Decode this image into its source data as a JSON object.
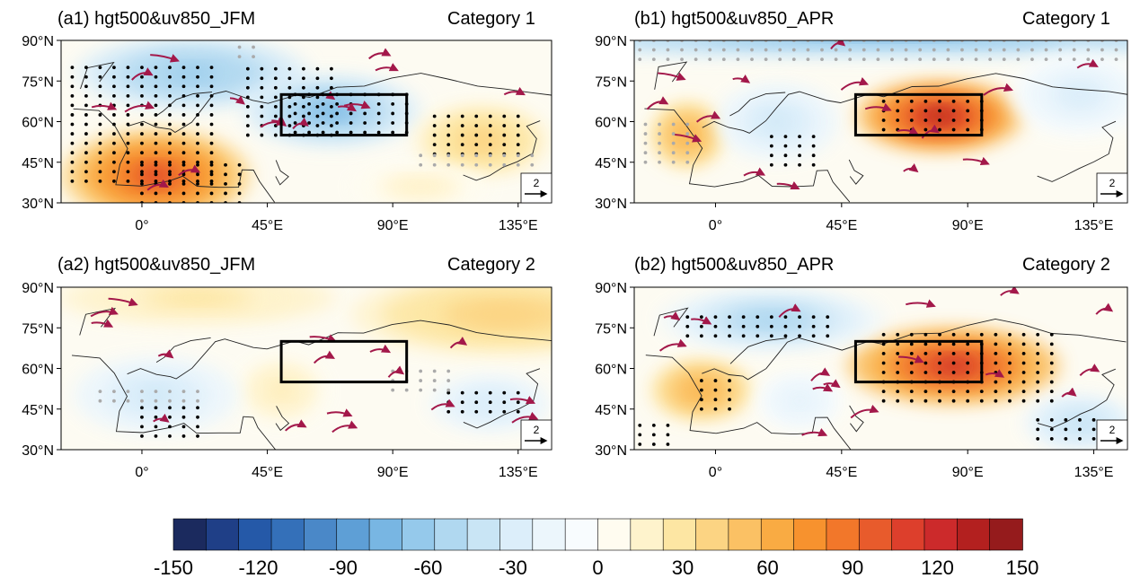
{
  "panels": [
    {
      "id": "a1",
      "title": "(a1) hgt500&uv850_JFM",
      "category": "Category 1",
      "ref_vector": "2",
      "fields": [
        {
          "lon": 5,
          "lat": 40,
          "rx": 34,
          "ry": 17,
          "v": 110
        },
        {
          "lon": 18,
          "lat": 78,
          "rx": 42,
          "ry": 13,
          "v": -70
        },
        {
          "lon": 68,
          "lat": 64,
          "rx": 32,
          "ry": 13,
          "v": -80
        },
        {
          "lon": 122,
          "lat": 53,
          "rx": 24,
          "ry": 13,
          "v": 45
        },
        {
          "lon": 100,
          "lat": 36,
          "rx": 25,
          "ry": 7,
          "v": 18
        }
      ],
      "stipple": [
        [
          -25,
          28,
          38,
          83,
          "black"
        ],
        [
          38,
          72,
          55,
          80,
          "black"
        ],
        [
          55,
          95,
          56,
          70,
          "black"
        ],
        [
          105,
          135,
          48,
          62,
          "black"
        ],
        [
          0,
          35,
          30,
          47,
          "black"
        ],
        [
          35,
          40,
          84,
          88,
          "grey"
        ],
        [
          100,
          140,
          44,
          48,
          "grey"
        ]
      ],
      "box": {
        "lon1": 50,
        "lon2": 95,
        "lat1": 55,
        "lat2": 70
      }
    },
    {
      "id": "b1",
      "title": "(b1) hgt500&uv850_APR",
      "category": "Category 1",
      "ref_vector": "2",
      "fields": [
        {
          "lon": -10,
          "lat": 55,
          "rx": 13,
          "ry": 12,
          "v": 70
        },
        {
          "lon": 80,
          "lat": 62,
          "rx": 30,
          "ry": 13,
          "v": 135
        },
        {
          "lon": 22,
          "lat": 60,
          "rx": 22,
          "ry": 14,
          "v": -40
        },
        {
          "lon": 60,
          "lat": 92,
          "rx": 160,
          "ry": 8,
          "v": -80
        },
        {
          "lon": 130,
          "lat": 70,
          "rx": 25,
          "ry": 15,
          "v": -30
        }
      ],
      "stipple": [
        [
          -27,
          147,
          83,
          90,
          "grey"
        ],
        [
          60,
          97,
          57,
          68,
          "black"
        ],
        [
          -25,
          -10,
          45,
          62,
          "grey"
        ],
        [
          20,
          35,
          44,
          55,
          "black"
        ]
      ],
      "box": {
        "lon1": 50,
        "lon2": 95,
        "lat1": 55,
        "lat2": 70
      }
    },
    {
      "id": "a2",
      "title": "(a2) hgt500&uv850_JFM",
      "category": "Category 2",
      "ref_vector": "2",
      "fields": [
        {
          "lon": 130,
          "lat": 80,
          "rx": 55,
          "ry": 15,
          "v": 45
        },
        {
          "lon": 20,
          "lat": 86,
          "rx": 50,
          "ry": 9,
          "v": 30
        },
        {
          "lon": 50,
          "lat": 52,
          "rx": 16,
          "ry": 12,
          "v": 25
        },
        {
          "lon": 5,
          "lat": 50,
          "rx": 30,
          "ry": 14,
          "v": -40
        },
        {
          "lon": 125,
          "lat": 47,
          "rx": 22,
          "ry": 10,
          "v": -35
        }
      ],
      "stipple": [
        [
          0,
          20,
          35,
          46,
          "black"
        ],
        [
          -15,
          20,
          48,
          52,
          "grey"
        ],
        [
          110,
          135,
          44,
          54,
          "black"
        ],
        [
          90,
          110,
          52,
          60,
          "grey"
        ]
      ],
      "box": {
        "lon1": 50,
        "lon2": 95,
        "lat1": 55,
        "lat2": 70
      }
    },
    {
      "id": "b2",
      "title": "(b2) hgt500&uv850_APR",
      "category": "Category 2",
      "ref_vector": "2",
      "fields": [
        {
          "lon": -5,
          "lat": 52,
          "rx": 18,
          "ry": 11,
          "v": 70
        },
        {
          "lon": 85,
          "lat": 61,
          "rx": 38,
          "ry": 14,
          "v": 125
        },
        {
          "lon": 20,
          "lat": 78,
          "rx": 40,
          "ry": 11,
          "v": -60
        },
        {
          "lon": 130,
          "lat": 40,
          "rx": 20,
          "ry": 10,
          "v": -45
        },
        {
          "lon": 30,
          "lat": 48,
          "rx": 15,
          "ry": 10,
          "v": -25
        }
      ],
      "stipple": [
        [
          -10,
          40,
          72,
          82,
          "black"
        ],
        [
          60,
          120,
          48,
          74,
          "black"
        ],
        [
          -5,
          5,
          45,
          57,
          "black"
        ],
        [
          -27,
          -15,
          32,
          42,
          "black"
        ],
        [
          115,
          135,
          34,
          42,
          "black"
        ]
      ],
      "box": {
        "lon1": 50,
        "lon2": 95,
        "lat1": 55,
        "lat2": 70
      }
    }
  ],
  "axes": {
    "lat_ticks": [
      "30°N",
      "45°N",
      "60°N",
      "75°N",
      "90°N"
    ],
    "lat_values": [
      30,
      45,
      60,
      75,
      90
    ],
    "lon_ticks": [
      "0°",
      "45°E",
      "90°E",
      "135°E"
    ],
    "lon_values": [
      0,
      45,
      90,
      135
    ],
    "lon_range": [
      -29,
      147
    ],
    "lat_range": [
      30,
      90
    ]
  },
  "colorbar": {
    "labels": [
      "-150",
      "-120",
      "-90",
      "-60",
      "-30",
      "0",
      "30",
      "60",
      "90",
      "120",
      "150"
    ],
    "values": [
      -150,
      -120,
      -90,
      -60,
      -30,
      0,
      30,
      60,
      90,
      120,
      150
    ],
    "colors": [
      "#1b2a5e",
      "#1f3f87",
      "#2559a8",
      "#3470b9",
      "#4a88c8",
      "#5e9fd6",
      "#78b6e3",
      "#95c9eb",
      "#b0d8f0",
      "#c9e5f5",
      "#dceefa",
      "#ecf6fc",
      "#f8fcfe",
      "#fffcf0",
      "#fef3cc",
      "#fde6a3",
      "#fcd483",
      "#fbc164",
      "#f9ab43",
      "#f7922e",
      "#f2772a",
      "#e85b2c",
      "#dd3f2c",
      "#cc2a2b",
      "#b3201f",
      "#951b1c"
    ],
    "cap_color": "#8d1818"
  },
  "vector_color": "#a3184a"
}
